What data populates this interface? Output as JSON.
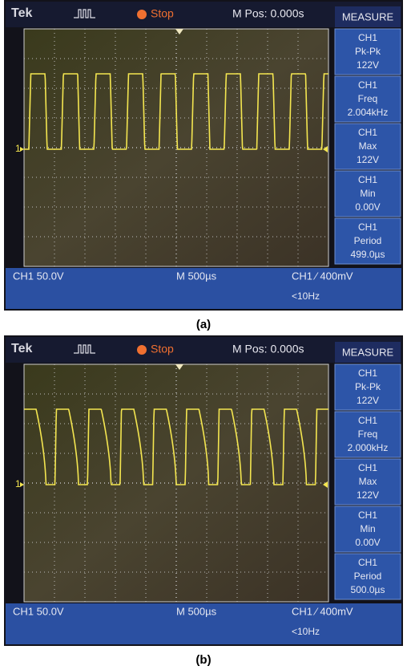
{
  "panels": [
    {
      "header": {
        "brand": "Tek",
        "status": "Stop",
        "position": "M Pos: 0.000s"
      },
      "channel_marker": "1",
      "measure": {
        "title": "MEASURE",
        "items": [
          {
            "channel": "CH1",
            "label": "Pk-Pk",
            "value": "122V"
          },
          {
            "channel": "CH1",
            "label": "Freq",
            "value": "2.004kHz"
          },
          {
            "channel": "CH1",
            "label": "Max",
            "value": "122V"
          },
          {
            "channel": "CH1",
            "label": "Min",
            "value": "0.00V"
          },
          {
            "channel": "CH1",
            "label": "Period",
            "value": "499.0µs"
          }
        ]
      },
      "footer": {
        "channel_scale": "CH1  50.0V",
        "timebase": "M 500µs",
        "trigger": "CH1 ∕ 400mV",
        "trigger_frequency": "<10Hz"
      },
      "caption": "(a)"
    },
    {
      "header": {
        "brand": "Tek",
        "status": "Stop",
        "position": "M Pos: 0.000s"
      },
      "channel_marker": "1",
      "measure": {
        "title": "MEASURE",
        "items": [
          {
            "channel": "CH1",
            "label": "Pk-Pk",
            "value": "122V"
          },
          {
            "channel": "CH1",
            "label": "Freq",
            "value": "2.000kHz"
          },
          {
            "channel": "CH1",
            "label": "Max",
            "value": "122V"
          },
          {
            "channel": "CH1",
            "label": "Min",
            "value": "0.00V"
          },
          {
            "channel": "CH1",
            "label": "Period",
            "value": "500.0µs"
          }
        ]
      },
      "footer": {
        "channel_scale": "CH1  50.0V",
        "timebase": "M 500µs",
        "trigger": "CH1 ∕ 400mV",
        "trigger_frequency": "<10Hz"
      },
      "caption": "(b)"
    }
  ]
}
